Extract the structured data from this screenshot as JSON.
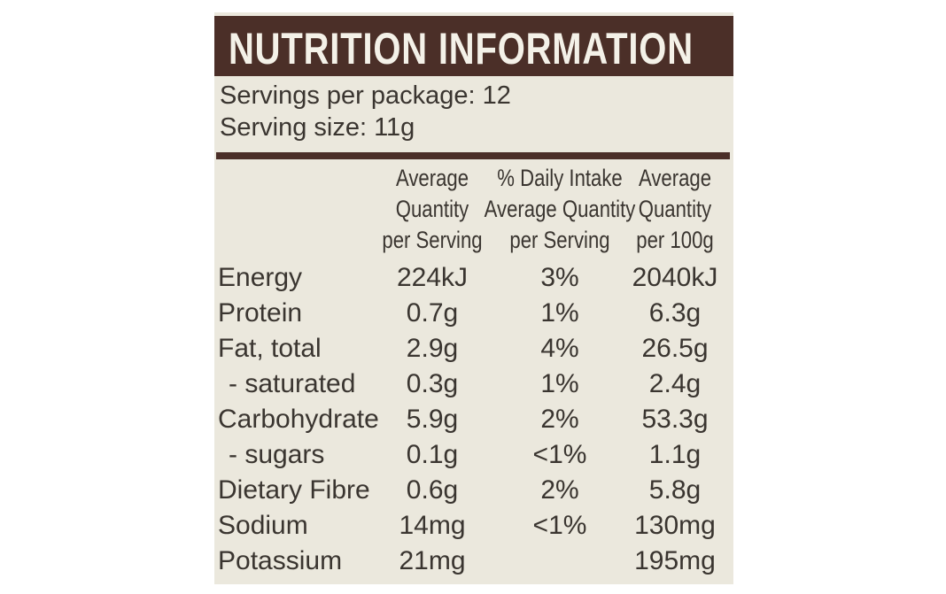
{
  "header": {
    "title": "NUTRITION INFORMATION"
  },
  "servings": [
    "Servings per package: 12",
    "Serving size: 11g"
  ],
  "table": {
    "columns": [
      [
        "Average",
        "Quantity",
        "per Serving"
      ],
      [
        "% Daily Intake",
        "Average Quantity",
        "per Serving"
      ],
      [
        "Average",
        "Quantity",
        "per 100g"
      ]
    ],
    "rows": [
      [
        "Energy",
        "224kJ",
        "3%",
        "2040kJ"
      ],
      [
        "Protein",
        "0.7g",
        "1%",
        "6.3g"
      ],
      [
        "Fat, total",
        "2.9g",
        "4%",
        "26.5g"
      ],
      [
        "- saturated",
        "0.3g",
        "1%",
        "2.4g"
      ],
      [
        "Carbohydrate",
        "5.9g",
        "2%",
        "53.3g"
      ],
      [
        "- sugars",
        "0.1g",
        "<1%",
        "1.1g"
      ],
      [
        "Dietary Fibre",
        "0.6g",
        "2%",
        "5.8g"
      ],
      [
        "Sodium",
        "14mg",
        "<1%",
        "130mg"
      ],
      [
        "Potassium",
        "21mg",
        null,
        "195mg"
      ]
    ]
  }
}
